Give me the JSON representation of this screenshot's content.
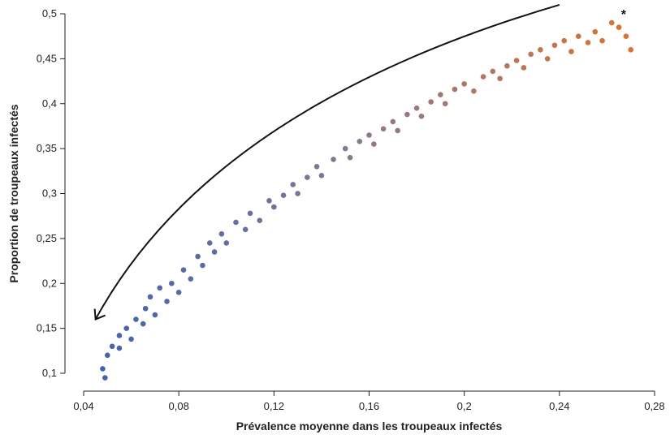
{
  "chart_data": {
    "type": "scatter",
    "title": "",
    "xlabel": "Prévalence moyenne dans les troupeaux infectés",
    "ylabel": "Proportion de troupeaux infectés",
    "xlim": [
      0.04,
      0.28
    ],
    "ylim": [
      0.1,
      0.5
    ],
    "xticks": [
      0.04,
      0.08,
      0.12,
      0.16,
      0.2,
      0.24,
      0.28
    ],
    "yticks": [
      0.1,
      0.15,
      0.2,
      0.25,
      0.3,
      0.35,
      0.4,
      0.45,
      0.5
    ],
    "xtick_labels": [
      "0,04",
      "0,08",
      "0,12",
      "0,16",
      "0,2",
      "0,24",
      "0,28"
    ],
    "ytick_labels": [
      "0,1",
      "0,15",
      "0,2",
      "0,25",
      "0,3",
      "0,35",
      "0,4",
      "0,45",
      "0,5"
    ],
    "grid": false,
    "colors": {
      "low": "#3f62b8",
      "mid": "#8a7a8e",
      "high": "#e2702a",
      "marker_edge": "#ffffff",
      "arrow": "#111111"
    },
    "points": [
      [
        0.049,
        0.095
      ],
      [
        0.048,
        0.105
      ],
      [
        0.05,
        0.12
      ],
      [
        0.052,
        0.13
      ],
      [
        0.055,
        0.128
      ],
      [
        0.055,
        0.142
      ],
      [
        0.058,
        0.15
      ],
      [
        0.06,
        0.138
      ],
      [
        0.062,
        0.16
      ],
      [
        0.065,
        0.155
      ],
      [
        0.066,
        0.172
      ],
      [
        0.068,
        0.185
      ],
      [
        0.07,
        0.165
      ],
      [
        0.072,
        0.195
      ],
      [
        0.075,
        0.18
      ],
      [
        0.077,
        0.2
      ],
      [
        0.08,
        0.19
      ],
      [
        0.082,
        0.215
      ],
      [
        0.085,
        0.205
      ],
      [
        0.088,
        0.23
      ],
      [
        0.09,
        0.22
      ],
      [
        0.093,
        0.245
      ],
      [
        0.095,
        0.235
      ],
      [
        0.098,
        0.255
      ],
      [
        0.1,
        0.245
      ],
      [
        0.104,
        0.268
      ],
      [
        0.108,
        0.26
      ],
      [
        0.11,
        0.278
      ],
      [
        0.114,
        0.27
      ],
      [
        0.118,
        0.292
      ],
      [
        0.12,
        0.285
      ],
      [
        0.124,
        0.298
      ],
      [
        0.128,
        0.31
      ],
      [
        0.13,
        0.3
      ],
      [
        0.134,
        0.318
      ],
      [
        0.138,
        0.33
      ],
      [
        0.14,
        0.32
      ],
      [
        0.145,
        0.338
      ],
      [
        0.15,
        0.35
      ],
      [
        0.152,
        0.34
      ],
      [
        0.156,
        0.358
      ],
      [
        0.16,
        0.365
      ],
      [
        0.162,
        0.355
      ],
      [
        0.166,
        0.372
      ],
      [
        0.17,
        0.38
      ],
      [
        0.172,
        0.37
      ],
      [
        0.176,
        0.388
      ],
      [
        0.18,
        0.395
      ],
      [
        0.182,
        0.386
      ],
      [
        0.186,
        0.402
      ],
      [
        0.19,
        0.41
      ],
      [
        0.192,
        0.4
      ],
      [
        0.196,
        0.416
      ],
      [
        0.2,
        0.422
      ],
      [
        0.204,
        0.414
      ],
      [
        0.208,
        0.43
      ],
      [
        0.212,
        0.436
      ],
      [
        0.215,
        0.428
      ],
      [
        0.218,
        0.442
      ],
      [
        0.222,
        0.448
      ],
      [
        0.225,
        0.44
      ],
      [
        0.228,
        0.455
      ],
      [
        0.232,
        0.46
      ],
      [
        0.235,
        0.45
      ],
      [
        0.238,
        0.465
      ],
      [
        0.242,
        0.47
      ],
      [
        0.245,
        0.458
      ],
      [
        0.248,
        0.475
      ],
      [
        0.252,
        0.468
      ],
      [
        0.255,
        0.48
      ],
      [
        0.258,
        0.47
      ],
      [
        0.262,
        0.49
      ],
      [
        0.265,
        0.485
      ],
      [
        0.268,
        0.475
      ],
      [
        0.27,
        0.46
      ]
    ],
    "annotations": [
      {
        "text": "*",
        "x": 0.267,
        "y": 0.5
      }
    ],
    "arrow": {
      "from": [
        0.24,
        0.51
      ],
      "to": [
        0.045,
        0.16
      ]
    }
  }
}
